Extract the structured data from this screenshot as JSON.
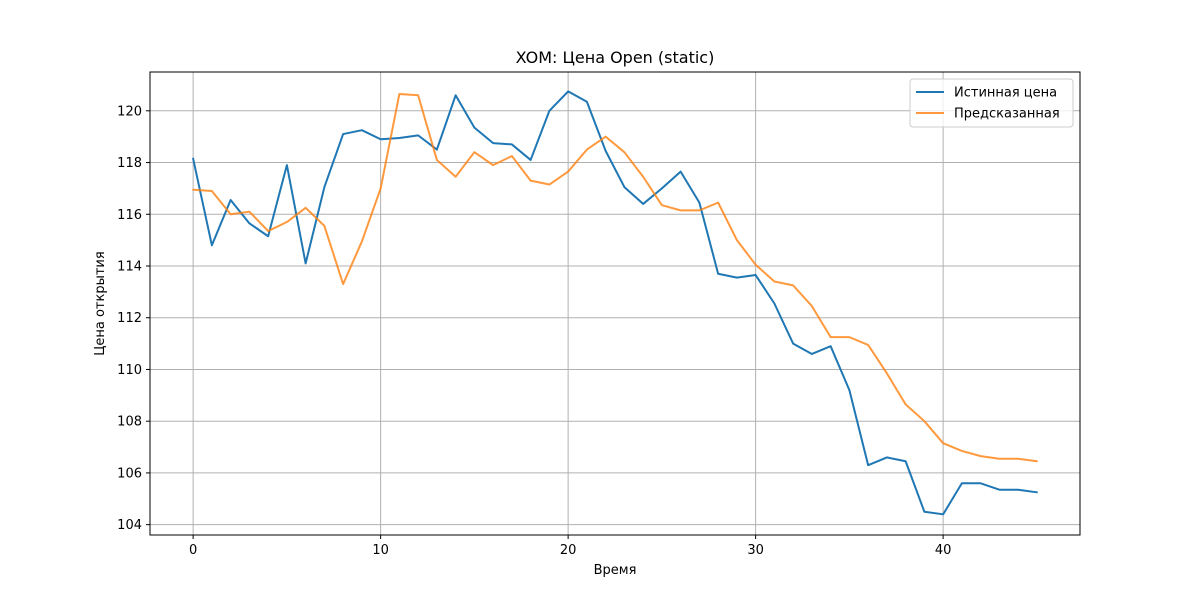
{
  "chart_data": {
    "type": "line",
    "title": "XOM: Цена Open (static)",
    "xlabel": "Время",
    "ylabel": "Цена открытия",
    "xlim": [
      -2.3,
      47.3
    ],
    "ylim": [
      103.6,
      121.5
    ],
    "xticks": [
      0,
      10,
      20,
      30,
      40
    ],
    "yticks": [
      104,
      106,
      108,
      110,
      112,
      114,
      116,
      118,
      120
    ],
    "grid": true,
    "legend_position": "top-right",
    "x": [
      0,
      1,
      2,
      3,
      4,
      5,
      6,
      7,
      8,
      9,
      10,
      11,
      12,
      13,
      14,
      15,
      16,
      17,
      18,
      19,
      20,
      21,
      22,
      23,
      24,
      25,
      26,
      27,
      28,
      29,
      30,
      31,
      32,
      33,
      34,
      35,
      36,
      37,
      38,
      39,
      40,
      41,
      42,
      43,
      44,
      45
    ],
    "series": [
      {
        "name": "Истинная цена",
        "color": "#1f77b4",
        "values": [
          118.15,
          114.8,
          116.55,
          115.65,
          115.15,
          117.9,
          114.1,
          117.05,
          119.1,
          119.25,
          118.9,
          118.95,
          119.05,
          118.5,
          120.6,
          119.35,
          118.75,
          118.7,
          118.1,
          120.0,
          120.75,
          120.35,
          118.45,
          117.05,
          116.4,
          117.0,
          117.65,
          116.45,
          113.7,
          113.55,
          113.65,
          112.55,
          111.0,
          110.6,
          110.9,
          109.2,
          106.3,
          106.6,
          106.45,
          104.5,
          104.4,
          105.6,
          105.6,
          105.35,
          105.35,
          105.25
        ]
      },
      {
        "name": "Предсказанная",
        "color": "#ff7f0e",
        "values": [
          116.95,
          116.9,
          116.0,
          116.1,
          115.35,
          115.7,
          116.25,
          115.55,
          113.3,
          114.95,
          117.0,
          120.65,
          120.6,
          118.1,
          117.45,
          118.4,
          117.9,
          118.25,
          117.3,
          117.15,
          117.65,
          118.5,
          119.0,
          118.4,
          117.45,
          116.35,
          116.15,
          116.15,
          116.45,
          115.0,
          114.05,
          113.4,
          113.25,
          112.45,
          111.25,
          111.25,
          110.95,
          109.85,
          108.65,
          108.0,
          107.15,
          106.85,
          106.65,
          106.55,
          106.55,
          106.45
        ]
      }
    ]
  }
}
